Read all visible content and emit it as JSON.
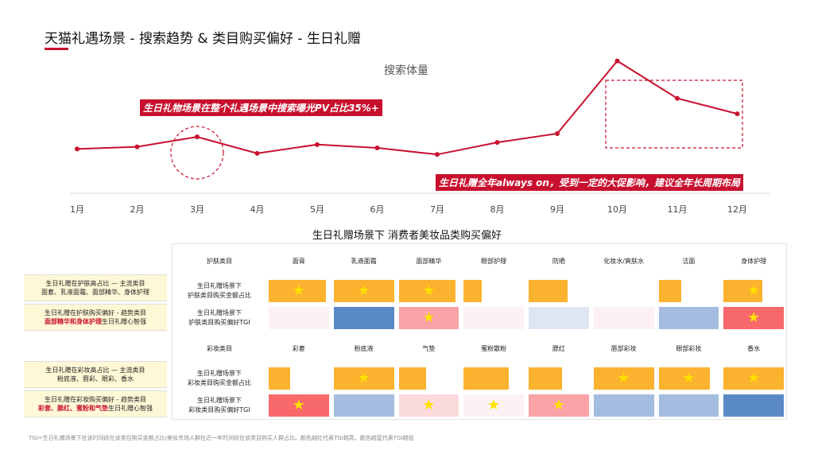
{
  "page": {
    "title": "天猫礼遇场景 - 搜索趋势 & 类目购买偏好 - 生日礼赠",
    "footnote": "TGI=生日礼赠场景下在该时间段在该类目购买金额占比/美妆市场人群在近一年时间段在该类目购买人群占比。颜色越红代表TGI越高，颜色越蓝代表TGI越低"
  },
  "callouts": {
    "share": "生日礼物场景在整个礼遇场景中搜索曝光PV占比35%+",
    "advice": "生日礼赠全年always on，受到一定的大促影响，建议全年长周期布局"
  },
  "colors": {
    "accent": "#c8102e",
    "bar": "#fbb22e",
    "tgi_very_high": "#f8696b",
    "tgi_high": "#f9a3a7",
    "tgi_mid": "#fbdadd",
    "tgi_light": "#fcf2f3",
    "tgi_neutral": "#dfe5f3",
    "tgi_low": "#a3bce0",
    "tgi_very_low": "#5a8ac6"
  },
  "chart_data": [
    {
      "type": "line",
      "title": "搜索体量",
      "categories": [
        "1月",
        "2月",
        "3月",
        "4月",
        "5月",
        "6月",
        "7月",
        "8月",
        "9月",
        "10月",
        "11月",
        "12月"
      ],
      "values": [
        38,
        40,
        49,
        34,
        42,
        39,
        33,
        44,
        52,
        118,
        84,
        70
      ],
      "ylim": [
        0,
        130
      ],
      "grid": false,
      "highlight_circle": "3月",
      "highlight_box": [
        "10月",
        "12月"
      ]
    },
    {
      "type": "table",
      "title": "生日礼赠场景下 消费者美妆品类购买偏好",
      "sections": [
        {
          "header_label": "护肤类目",
          "categories": [
            "面膏",
            "乳液面霜",
            "面部精华",
            "眼部护理",
            "防晒",
            "化妆水/爽肤水",
            "洁面",
            "身体护理"
          ],
          "share_row": {
            "label_1": "生日礼赠场景下",
            "label_2": "护肤类目购买金额占比",
            "values": [
              0.95,
              1.0,
              0.95,
              0.3,
              0.65,
              0.0,
              0.38,
              0.65
            ],
            "stars": [
              true,
              true,
              true,
              false,
              false,
              false,
              false,
              true
            ]
          },
          "tgi_row": {
            "label_1": "生日礼赠场景下",
            "label_2": "护肤类目购买偏好TGI",
            "levels": [
              "light",
              "very_low",
              "high",
              "light",
              "neutral",
              "light",
              "low",
              "very_high"
            ],
            "stars": [
              false,
              false,
              true,
              false,
              false,
              false,
              false,
              true
            ]
          }
        },
        {
          "header_label": "彩妆类目",
          "categories": [
            "彩套",
            "粉底液",
            "气垫",
            "蜜粉散粉",
            "腮红",
            "唇部彩妆",
            "眼部彩妆",
            "香水"
          ],
          "share_row": {
            "label_1": "生日礼赠场景下",
            "label_2": "彩妆类目购买金额占比",
            "values": [
              0.35,
              1.0,
              0.45,
              0.75,
              0.55,
              1.0,
              0.85,
              1.0
            ],
            "stars": [
              false,
              true,
              false,
              false,
              false,
              true,
              true,
              true
            ]
          },
          "tgi_row": {
            "label_1": "生日礼赠场景下",
            "label_2": "彩妆类目购买偏好TGI",
            "levels": [
              "very_high",
              "low",
              "mid",
              "light",
              "high",
              "low",
              "low",
              "very_low"
            ],
            "stars": [
              true,
              false,
              true,
              true,
              true,
              false,
              false,
              false
            ]
          }
        }
      ]
    }
  ],
  "side_notes": [
    {
      "line1": "生日礼赠在护肤高占比 — 主流类目",
      "line2_plain": "面套、乳液面霜、面部精华、身体护理",
      "line2_red": "",
      "line2_tail": ""
    },
    {
      "line1": "生日礼赠在护肤购买偏好 - 趋势类目",
      "line2_plain": "",
      "line2_red": "面部精华和身体护理",
      "line2_tail": "生日礼赠心智强"
    },
    {
      "line1": "生日礼赠在彩妆高占比 — 主流类目",
      "line2_plain": "粉底液、唇彩、眼彩、香水",
      "line2_red": "",
      "line2_tail": ""
    },
    {
      "line1": "生日礼赠在彩妆购买偏好 - 趋势类目",
      "line2_plain": "",
      "line2_red": "彩套、腮红、蜜粉和气垫",
      "line2_tail": "生日礼赠心智强"
    }
  ]
}
